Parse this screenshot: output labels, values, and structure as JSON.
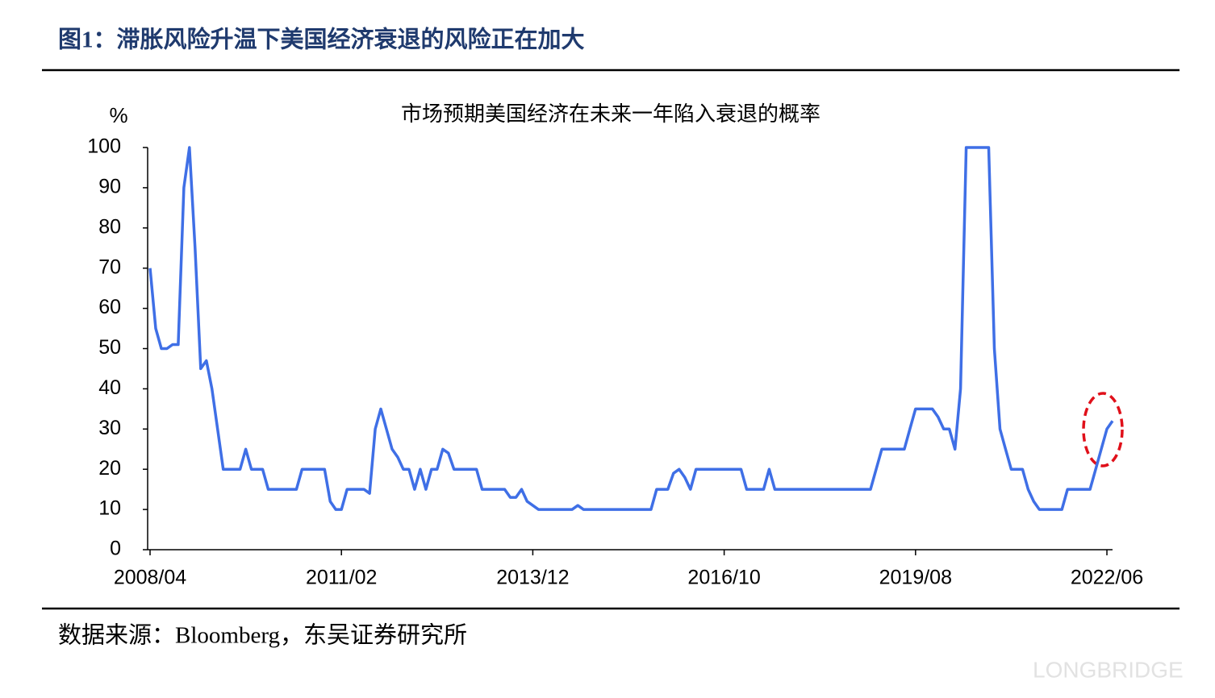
{
  "header": {
    "title": "图1：滞胀风险升温下美国经济衰退的风险正在加大"
  },
  "chart_data": {
    "type": "line",
    "title": "市场预期美国经济在未来一年陷入衰退的概率",
    "y_label": "%",
    "color": "#3f6fe6",
    "x": [
      "2008/04",
      "2008/05",
      "2008/06",
      "2008/07",
      "2008/08",
      "2008/09",
      "2008/10",
      "2008/11",
      "2008/12",
      "2009/01",
      "2009/02",
      "2009/03",
      "2009/04",
      "2009/05",
      "2009/08",
      "2009/09",
      "2009/10",
      "2009/12",
      "2010/01",
      "2010/06",
      "2010/07",
      "2010/11",
      "2010/12",
      "2011/01",
      "2011/02",
      "2011/03",
      "2011/06",
      "2011/07",
      "2011/08",
      "2011/09",
      "2011/10",
      "2011/11",
      "2011/12",
      "2012/01",
      "2012/02",
      "2012/03",
      "2012/04",
      "2012/05",
      "2012/06",
      "2012/07",
      "2012/08",
      "2012/09",
      "2012/10",
      "2013/02",
      "2013/03",
      "2013/07",
      "2013/08",
      "2013/09",
      "2013/10",
      "2013/11",
      "2013/12",
      "2014/01",
      "2014/07",
      "2014/08",
      "2014/09",
      "2015/09",
      "2015/10",
      "2015/12",
      "2016/01",
      "2016/02",
      "2016/03",
      "2016/04",
      "2016/05",
      "2017/01",
      "2017/02",
      "2017/05",
      "2017/06",
      "2017/07",
      "2018/12",
      "2019/01",
      "2019/02",
      "2019/06",
      "2019/07",
      "2019/08",
      "2019/11",
      "2019/12",
      "2020/01",
      "2020/02",
      "2020/03",
      "2020/04",
      "2020/05",
      "2020/09",
      "2020/10",
      "2020/11",
      "2020/12",
      "2021/01",
      "2021/03",
      "2021/04",
      "2021/05",
      "2021/06",
      "2021/10",
      "2021/11",
      "2022/03",
      "2022/04",
      "2022/05",
      "2022/06",
      "2022/07"
    ],
    "values": [
      70,
      55,
      50,
      50,
      51,
      51,
      90,
      100,
      75,
      45,
      47,
      40,
      30,
      20,
      20,
      25,
      20,
      20,
      15,
      15,
      20,
      20,
      12,
      10,
      10,
      15,
      15,
      14,
      30,
      35,
      30,
      25,
      23,
      20,
      20,
      15,
      20,
      15,
      20,
      20,
      25,
      24,
      20,
      20,
      15,
      15,
      13,
      13,
      15,
      12,
      11,
      10,
      10,
      11,
      10,
      10,
      15,
      15,
      19,
      20,
      18,
      15,
      20,
      20,
      15,
      15,
      20,
      15,
      15,
      20,
      25,
      25,
      30,
      35,
      35,
      33,
      30,
      30,
      25,
      40,
      100,
      100,
      50,
      30,
      25,
      20,
      20,
      15,
      12,
      10,
      10,
      15,
      15,
      20,
      25,
      30,
      32
    ],
    "xlim": [
      "2008/04",
      "2022/07"
    ],
    "xticks": [
      "2008/04",
      "2011/02",
      "2013/12",
      "2016/10",
      "2019/08",
      "2022/06"
    ],
    "ylim": [
      0,
      100
    ],
    "yticks": [
      0,
      10,
      20,
      30,
      40,
      50,
      60,
      70,
      80,
      90,
      100
    ]
  },
  "source": "数据来源：Bloomberg，东吴证券研究所",
  "watermark": "LONGBRIDGE"
}
